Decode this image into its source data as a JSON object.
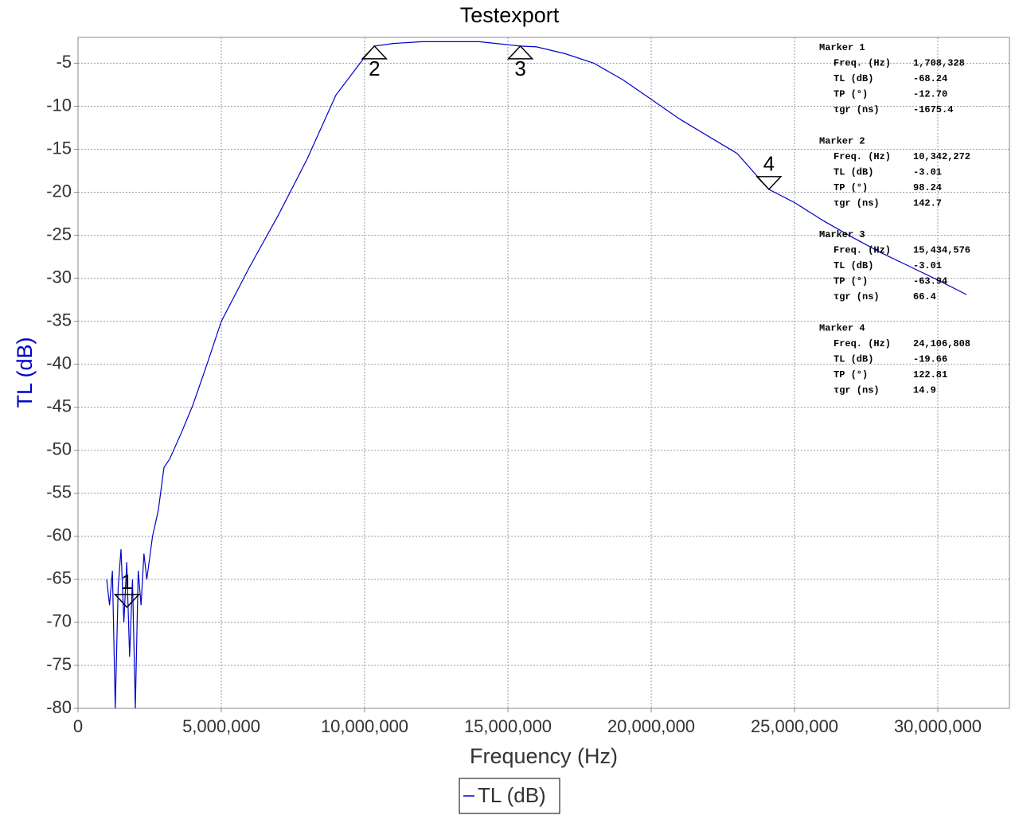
{
  "chart_data": {
    "type": "line",
    "title": "Testexport",
    "x_label": "Frequency (Hz)",
    "y_label": "TL (dB)",
    "xlim": [
      0,
      32500000
    ],
    "ylim": [
      -80,
      -2
    ],
    "xticks": [
      0,
      {
        "value": 5000000,
        "label": "5,000,000"
      },
      {
        "value": 10000000,
        "label": "10,000,000"
      },
      {
        "value": 15000000,
        "label": "15,000,000"
      },
      {
        "value": 20000000,
        "label": "20,000,000"
      },
      {
        "value": 25000000,
        "label": "25,000,000"
      },
      {
        "value": 30000000,
        "label": "30,000,000"
      }
    ],
    "yticks": [
      -5,
      -10,
      -15,
      -20,
      -25,
      -30,
      -35,
      -40,
      -45,
      -50,
      -55,
      -60,
      -65,
      -70,
      -75,
      -80
    ],
    "grid": true,
    "legend": "bottom",
    "series": [
      {
        "name": "TL (dB)",
        "color": "#0000cc",
        "x": [
          1000000,
          1100000,
          1200000,
          1300000,
          1400000,
          1500000,
          1600000,
          1700000,
          1800000,
          1900000,
          2000000,
          2100000,
          2200000,
          2300000,
          2400000,
          2600000,
          2800000,
          3000000,
          3200000,
          3600000,
          4000000,
          4500000,
          5000000,
          6000000,
          7000000,
          8000000,
          9000000,
          10000000,
          10342272,
          11000000,
          12000000,
          14000000,
          15434576,
          16000000,
          17000000,
          18000000,
          19000000,
          20000000,
          21000000,
          22000000,
          23000000,
          24106808,
          25000000,
          26000000,
          27000000,
          28000000,
          29000000,
          30000000,
          31000000
        ],
        "values": [
          -65,
          -68,
          -64,
          -80,
          -66,
          -61.5,
          -70,
          -63,
          -74,
          -65,
          -80,
          -64,
          -68,
          -62,
          -65,
          -60,
          -57,
          -52,
          -51,
          -48,
          -44.8,
          -40,
          -35,
          -28.6,
          -22.6,
          -16.1,
          -8.7,
          -4.3,
          -3.01,
          -2.7,
          -2.5,
          -2.5,
          -3.01,
          -3.1,
          -3.9,
          -5,
          -6.9,
          -9.2,
          -11.5,
          -13.5,
          -15.5,
          -19.66,
          -21.2,
          -23.3,
          -25.2,
          -27,
          -28.6,
          -30.2,
          -31.9
        ]
      }
    ],
    "markers": [
      {
        "label": "1",
        "x": 1708328,
        "y": -68.24,
        "direction": "down"
      },
      {
        "label": "2",
        "x": 10342272,
        "y": -3.01,
        "direction": "up"
      },
      {
        "label": "3",
        "x": 15434576,
        "y": -3.01,
        "direction": "up"
      },
      {
        "label": "4",
        "x": 24106808,
        "y": -19.66,
        "direction": "down"
      }
    ],
    "marker_info": [
      {
        "title": "Marker 1",
        "rows": [
          [
            "Freq. (Hz)",
            "1,708,328"
          ],
          [
            "TL (dB)",
            "-68.24"
          ],
          [
            "TP (°)",
            "-12.70"
          ],
          [
            "τgr (ns)",
            "-1675.4"
          ]
        ]
      },
      {
        "title": "Marker 2",
        "rows": [
          [
            "Freq. (Hz)",
            "10,342,272"
          ],
          [
            "TL (dB)",
            "-3.01"
          ],
          [
            "TP (°)",
            "98.24"
          ],
          [
            "τgr (ns)",
            "142.7"
          ]
        ]
      },
      {
        "title": "Marker 3",
        "rows": [
          [
            "Freq. (Hz)",
            "15,434,576"
          ],
          [
            "TL (dB)",
            "-3.01"
          ],
          [
            "TP (°)",
            "-63.94"
          ],
          [
            "τgr (ns)",
            "66.4"
          ]
        ]
      },
      {
        "title": "Marker 4",
        "rows": [
          [
            "Freq. (Hz)",
            "24,106,808"
          ],
          [
            "TL (dB)",
            "-19.66"
          ],
          [
            "TP (°)",
            "122.81"
          ],
          [
            "τgr (ns)",
            "14.9"
          ]
        ]
      }
    ]
  }
}
